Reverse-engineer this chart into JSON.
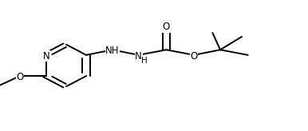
{
  "background_color": "#ffffff",
  "line_color": "#000000",
  "line_width": 1.4,
  "font_size": 8.5,
  "figsize": [
    3.86,
    1.64
  ],
  "dpi": 100,
  "xlim": [
    0.0,
    1.0
  ],
  "ylim": [
    0.0,
    1.0
  ]
}
